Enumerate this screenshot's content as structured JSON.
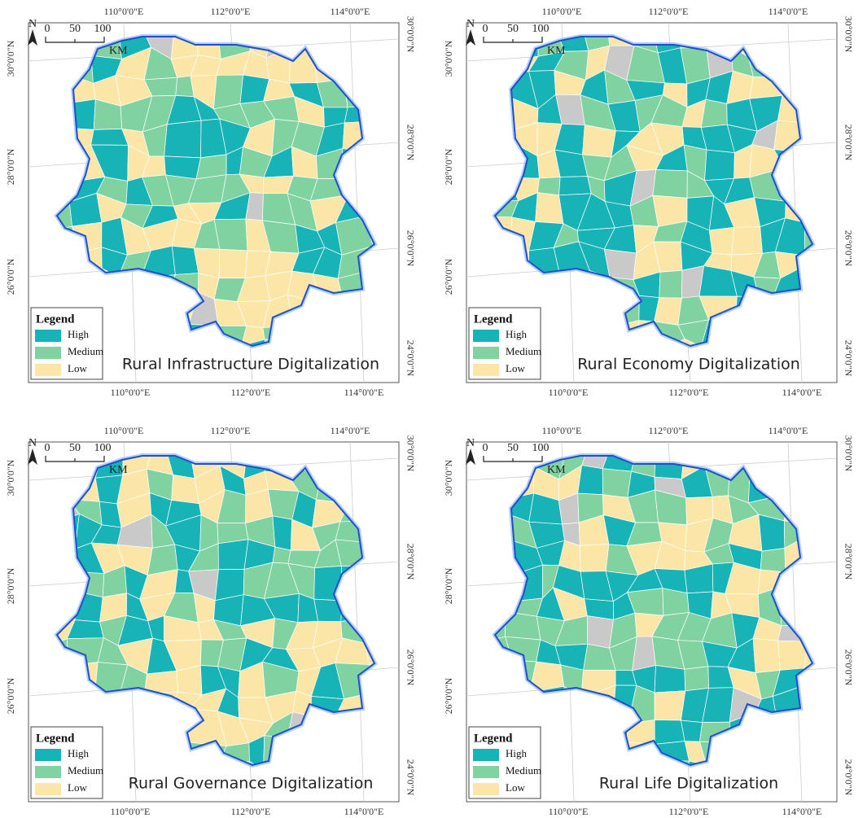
{
  "panels": [
    {
      "title": "Rural Infrastructure  Digitalization",
      "legend": {
        "title": "Legend",
        "items": [
          {
            "name": "High",
            "color": "#17b3b7"
          },
          {
            "name": "Medium",
            "color": "#80d3a1"
          },
          {
            "name": "Low",
            "color": "#fbe6a7"
          }
        ]
      },
      "scale_bar": {
        "north": "N",
        "labels": [
          "0",
          "50",
          "100"
        ],
        "unit": "KM"
      },
      "top_labels": [
        "110°0'0\"E",
        "112°0'0\"E",
        "114°0'0\"E"
      ],
      "bottom_labels": [
        "110°0'0\"E",
        "112°0'0\"E",
        "114°0'0\"E"
      ],
      "left_labels": [
        "30°0'0\"N",
        "28°0'0\"N",
        "26°0'0\"N"
      ],
      "right_labels": [
        "30°0'0\"N",
        "28°0'0\"N",
        "26°0'0\"N",
        "24°0'0\"N"
      ]
    },
    {
      "title": "Rural Economy Digitalization",
      "legend": {
        "title": "Legend",
        "items": [
          {
            "name": "High",
            "color": "#17b3b7"
          },
          {
            "name": "Medium",
            "color": "#80d3a1"
          },
          {
            "name": "Low",
            "color": "#fbe6a7"
          }
        ]
      },
      "scale_bar": {
        "north": "N",
        "labels": [
          "0",
          "50",
          "100"
        ],
        "unit": "KM"
      },
      "top_labels": [
        "110°0'0\"E",
        "112°0'0\"E",
        "114°0'0\"E"
      ],
      "bottom_labels": [
        "110°0'0\"E",
        "112°0'0\"E",
        "114°0'0\"E"
      ],
      "left_labels": [
        "30°0'0\"N",
        "28°0'0\"N",
        "26°0'0\"N"
      ],
      "right_labels": [
        "30°0'0\"N",
        "28°0'0\"N",
        "26°0'0\"N",
        "24°0'0\"N"
      ]
    },
    {
      "title": "Rural Governance Digitalization",
      "legend": {
        "title": "Legend",
        "items": [
          {
            "name": "High",
            "color": "#17b3b7"
          },
          {
            "name": "Medium",
            "color": "#80d3a1"
          },
          {
            "name": "Low",
            "color": "#fbe6a7"
          }
        ]
      },
      "scale_bar": {
        "north": "N",
        "labels": [
          "0",
          "50",
          "100"
        ],
        "unit": "KM"
      },
      "top_labels": [
        "110°0'0\"E",
        "112°0'0\"E",
        "114°0'0\"E"
      ],
      "bottom_labels": [
        "110°0'0\"E",
        "112°0'0\"E",
        "114°0'0\"E"
      ],
      "left_labels": [
        "30°0'0\"N",
        "28°0'0\"N",
        "26°0'0\"N"
      ],
      "right_labels": [
        "30°0'0\"N",
        "28°0'0\"N",
        "26°0'0\"N",
        "24°0'0\"N"
      ]
    },
    {
      "title": "Rural Life Digitalization",
      "legend": {
        "title": "Legend",
        "items": [
          {
            "name": "High",
            "color": "#17b3b7"
          },
          {
            "name": "Medium",
            "color": "#80d3a1"
          },
          {
            "name": "Low",
            "color": "#fbe6a7"
          }
        ]
      },
      "scale_bar": {
        "north": "N",
        "labels": [
          "0",
          "50",
          "100"
        ],
        "unit": "KM"
      },
      "top_labels": [
        "110°0'0\"E",
        "112°0'0\"E",
        "114°0'0\"E"
      ],
      "bottom_labels": [
        "110°0'0\"E",
        "112°0'0\"E",
        "114°0'0\"E"
      ],
      "left_labels": [
        "30°0'0\"N",
        "28°0'0\"N",
        "26°0'0\"N"
      ],
      "right_labels": [
        "30°0'0\"N",
        "28°0'0\"N",
        "26°0'0\"N",
        "24°0'0\"N"
      ]
    }
  ]
}
